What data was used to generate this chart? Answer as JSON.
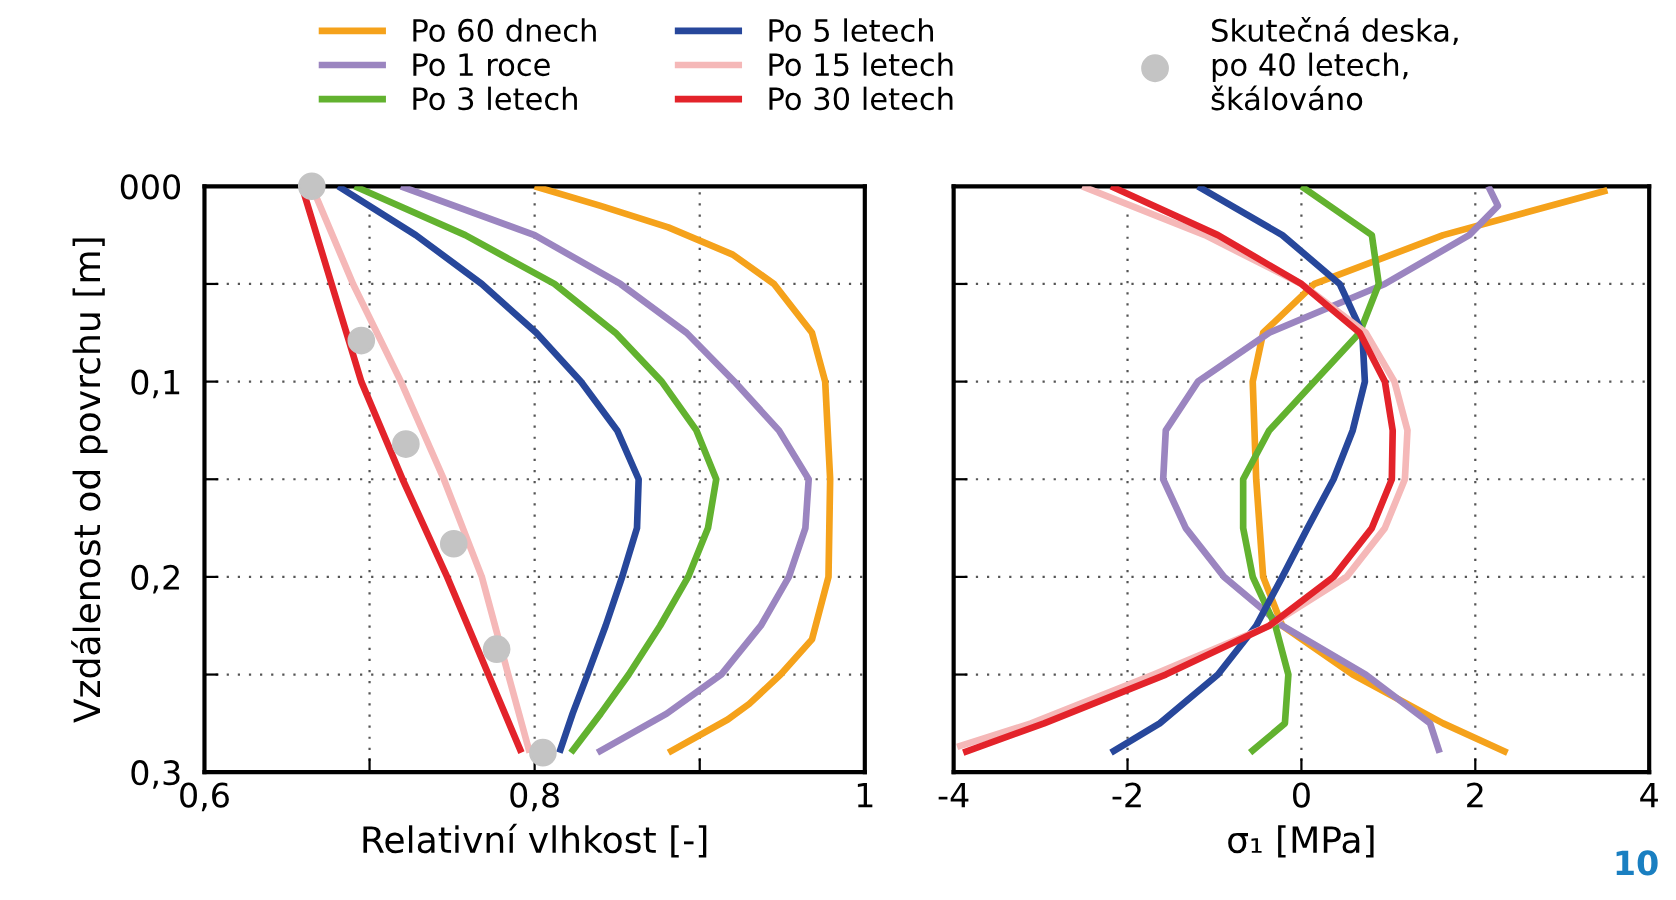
{
  "chart_data": [
    {
      "type": "line",
      "xlabel": "Relativní vlhkost [-]",
      "ylabel": "Vzdálenost od povrchu [m]",
      "legend": "top",
      "grid": true,
      "line_style": "solid",
      "marker": "none",
      "xlim": [
        0.6,
        1
      ],
      "xticks": [
        {
          "value": 0.6,
          "label": "0,6"
        },
        {
          "value": 0.7,
          "label": null
        },
        {
          "value": 0.8,
          "label": "0,8"
        },
        {
          "value": 0.9,
          "label": null
        },
        {
          "value": 1,
          "label": "1"
        }
      ],
      "ylim": [
        0.3,
        0
      ],
      "yticks": [
        {
          "value": 0,
          "label": "000"
        },
        {
          "value": 0.05,
          "label": null
        },
        {
          "value": 0.1,
          "label": "0,1"
        },
        {
          "value": 0.15,
          "label": null
        },
        {
          "value": 0.2,
          "label": "0,2"
        },
        {
          "value": 0.25,
          "label": null
        },
        {
          "value": 0.3,
          "label": "0,3"
        }
      ],
      "series": [
        {
          "name": "Po 60 dnech",
          "color": "#f5a21b",
          "x": [
            0.8,
            0.84,
            0.881,
            0.92,
            0.945,
            0.968,
            0.976,
            0.979,
            0.978,
            0.968,
            0.949,
            0.93,
            0.917,
            0.881
          ],
          "values": [
            0,
            0.01,
            0.021,
            0.035,
            0.05,
            0.075,
            0.1,
            0.15,
            0.2,
            0.232,
            0.25,
            0.265,
            0.273,
            0.29
          ]
        },
        {
          "name": "Po 1 roce",
          "color": "#9b85c0",
          "x": [
            0.719,
            0.8,
            0.852,
            0.892,
            0.921,
            0.948,
            0.966,
            0.964,
            0.954,
            0.937,
            0.913,
            0.88,
            0.838
          ],
          "values": [
            0,
            0.025,
            0.05,
            0.075,
            0.1,
            0.125,
            0.15,
            0.175,
            0.2,
            0.225,
            0.25,
            0.27,
            0.29
          ]
        },
        {
          "name": "Po 3 letech",
          "color": "#62b22f",
          "x": [
            0.691,
            0.758,
            0.812,
            0.849,
            0.877,
            0.898,
            0.91,
            0.905,
            0.893,
            0.876,
            0.857,
            0.84,
            0.822
          ],
          "values": [
            0,
            0.025,
            0.05,
            0.075,
            0.1,
            0.125,
            0.15,
            0.175,
            0.2,
            0.225,
            0.25,
            0.27,
            0.29
          ]
        },
        {
          "name": "Po 5 letech",
          "color": "#27479b",
          "x": [
            0.681,
            0.728,
            0.768,
            0.801,
            0.828,
            0.85,
            0.863,
            0.862,
            0.853,
            0.843,
            0.832,
            0.823,
            0.815
          ],
          "values": [
            0,
            0.025,
            0.05,
            0.075,
            0.1,
            0.125,
            0.15,
            0.175,
            0.2,
            0.225,
            0.25,
            0.27,
            0.29
          ]
        },
        {
          "name": "Po 15 letech",
          "color": "#f5b8b8",
          "x": [
            0.665,
            0.69,
            0.719,
            0.745,
            0.768,
            0.784,
            0.797
          ],
          "values": [
            0,
            0.05,
            0.1,
            0.15,
            0.2,
            0.25,
            0.29
          ]
        },
        {
          "name": "Po 30 letech",
          "color": "#e3232a",
          "x": [
            0.659,
            0.677,
            0.695,
            0.72,
            0.747,
            0.772,
            0.792
          ],
          "values": [
            0,
            0.05,
            0.1,
            0.15,
            0.2,
            0.25,
            0.29
          ]
        },
        {
          "name": "Skutečná deska,\npo 40 letech,\nškálováno",
          "type": "scatter",
          "marker": "circle",
          "color": "#c4c4c4",
          "x": [
            0.665,
            0.695,
            0.722,
            0.751,
            0.777,
            0.805
          ],
          "values": [
            0,
            0.079,
            0.132,
            0.183,
            0.237,
            0.29
          ]
        }
      ]
    },
    {
      "type": "line",
      "xlabel": "σ₁ [MPa]",
      "grid": true,
      "line_style": "solid",
      "marker": "none",
      "tick_labels": "x",
      "xlim": [
        -4,
        4
      ],
      "xticks": [
        {
          "value": -4,
          "label": "-4"
        },
        {
          "value": -2,
          "label": "-2"
        },
        0,
        2,
        4
      ],
      "ylim": [
        0.3,
        0
      ],
      "yticks": [
        {
          "value": 0,
          "label": null
        },
        {
          "value": 0.05,
          "label": null
        },
        {
          "value": 0.1,
          "label": null
        },
        {
          "value": 0.15,
          "label": null
        },
        {
          "value": 0.2,
          "label": null
        },
        {
          "value": 0.25,
          "label": null
        },
        {
          "value": 0.3,
          "label": null
        }
      ],
      "annotations": [
        "10"
      ],
      "series": [
        {
          "color": "#f5a21b",
          "x": [
            3.52,
            1.63,
            0.15,
            -0.44,
            -0.56,
            -0.52,
            -0.44,
            -0.22,
            0.59,
            1.63,
            2.37
          ],
          "values": [
            0.002,
            0.025,
            0.05,
            0.075,
            0.1,
            0.15,
            0.2,
            0.225,
            0.25,
            0.275,
            0.29
          ]
        },
        {
          "color": "#9b85c0",
          "x": [
            2.15,
            2.26,
            1.93,
            0.96,
            -0.37,
            -1.19,
            -1.56,
            -1.59,
            -1.33,
            -0.89,
            -0.22,
            0.74,
            1.48,
            1.59
          ],
          "values": [
            0,
            0.01,
            0.025,
            0.05,
            0.075,
            0.1,
            0.125,
            0.15,
            0.175,
            0.2,
            0.225,
            0.25,
            0.275,
            0.29
          ]
        },
        {
          "color": "#62b22f",
          "x": [
            0,
            0.81,
            0.89,
            0.67,
            0.15,
            -0.37,
            -0.67,
            -0.67,
            -0.56,
            -0.3,
            -0.15,
            -0.19,
            -0.59
          ],
          "values": [
            0,
            0.025,
            0.05,
            0.075,
            0.1,
            0.125,
            0.15,
            0.175,
            0.2,
            0.225,
            0.25,
            0.275,
            0.29
          ]
        },
        {
          "color": "#27479b",
          "x": [
            -1.19,
            -0.22,
            0.44,
            0.7,
            0.73,
            0.59,
            0.37,
            0.07,
            -0.22,
            -0.52,
            -0.96,
            -1.63,
            -2.19
          ],
          "values": [
            0,
            0.025,
            0.05,
            0.075,
            0.1,
            0.125,
            0.15,
            0.175,
            0.2,
            0.225,
            0.25,
            0.275,
            0.29
          ]
        },
        {
          "color": "#f5b8b8",
          "x": [
            -2.52,
            -1.11,
            0,
            0.74,
            1.07,
            1.22,
            1.19,
            0.96,
            0.52,
            -0.37,
            -1.7,
            -3.11,
            -3.96
          ],
          "values": [
            0,
            0.025,
            0.05,
            0.075,
            0.1,
            0.125,
            0.15,
            0.175,
            0.2,
            0.225,
            0.25,
            0.275,
            0.287
          ]
        },
        {
          "color": "#e3232a",
          "x": [
            -2.19,
            -0.96,
            0,
            0.67,
            0.96,
            1.05,
            1.04,
            0.81,
            0.37,
            -0.37,
            -1.56,
            -2.96,
            -3.89
          ],
          "values": [
            0,
            0.025,
            0.05,
            0.075,
            0.1,
            0.125,
            0.15,
            0.175,
            0.2,
            0.225,
            0.25,
            0.275,
            0.29
          ]
        }
      ]
    }
  ]
}
